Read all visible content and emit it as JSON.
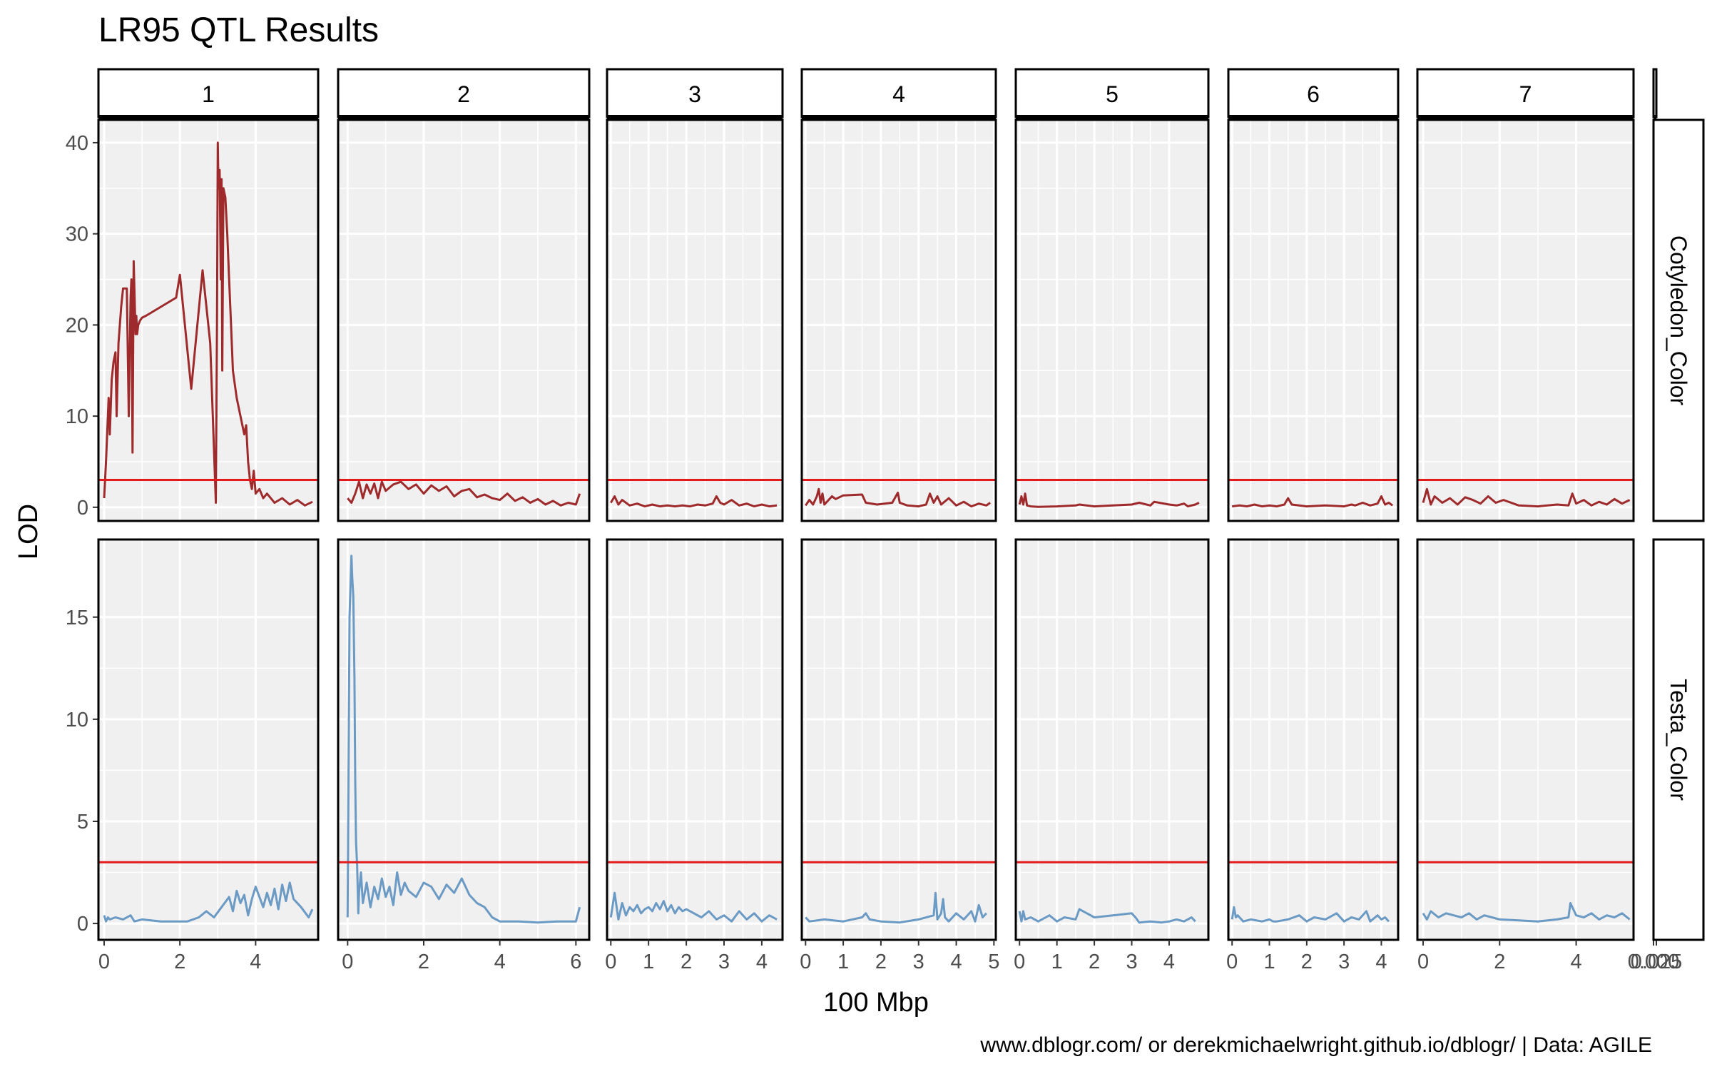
{
  "chart_data": {
    "type": "line",
    "title": "LR95 QTL Results",
    "xlabel": "100 Mbp",
    "ylabel": "LOD",
    "caption": "www.dblogr.com/ or derekmichaelwright.github.io/dblogr/ | Data: AGILE",
    "threshold": 3,
    "threshold_color": "#e31a1c",
    "panel_background": "#f0f0f0",
    "grid": true,
    "rows": [
      {
        "label": "Cotyledon_Color",
        "color": "#9e2a2b",
        "ylim": [
          -1.5,
          42.5
        ],
        "yticks": [
          0,
          10,
          20,
          30,
          40
        ]
      },
      {
        "label": "Testa_Color",
        "color": "#6b9ac4",
        "ylim": [
          -0.8,
          18.8
        ],
        "yticks": [
          0,
          5,
          10,
          15
        ]
      }
    ],
    "chromosomes": [
      {
        "label": "1",
        "xlim": [
          -0.15,
          5.65
        ],
        "xticks": [
          "0",
          "2",
          "4"
        ],
        "xtick_values": [
          0,
          2,
          4
        ]
      },
      {
        "label": "2",
        "xlim": [
          -0.25,
          6.35
        ],
        "xticks": [
          "0",
          "2",
          "4",
          "6"
        ],
        "xtick_values": [
          0,
          2,
          4,
          6
        ]
      },
      {
        "label": "3",
        "xlim": [
          -0.1,
          4.55
        ],
        "xticks": [
          "0",
          "1",
          "2",
          "3",
          "4"
        ],
        "xtick_values": [
          0,
          1,
          2,
          3,
          4
        ]
      },
      {
        "label": "4",
        "xlim": [
          -0.1,
          5.05
        ],
        "xticks": [
          "0",
          "1",
          "2",
          "3",
          "4",
          "5"
        ],
        "xtick_values": [
          0,
          1,
          2,
          3,
          4,
          5
        ]
      },
      {
        "label": "5",
        "xlim": [
          -0.1,
          5.05
        ],
        "xticks": [
          "0",
          "1",
          "2",
          "3",
          "4"
        ],
        "xtick_values": [
          0,
          1,
          2,
          3,
          4
        ]
      },
      {
        "label": "6",
        "xlim": [
          -0.1,
          4.45
        ],
        "xticks": [
          "0",
          "1",
          "2",
          "3",
          "4"
        ],
        "xtick_values": [
          0,
          1,
          2,
          3,
          4
        ]
      },
      {
        "label": "7",
        "xlim": [
          -0.15,
          5.5
        ],
        "xticks": [
          "0",
          "2",
          "4"
        ],
        "xtick_values": [
          0,
          2,
          4
        ]
      },
      {
        "label": "",
        "xlim": [
          0,
          0.025
        ],
        "xticks": [
          "0.000",
          "0.025"
        ],
        "xtick_values": [
          0,
          0.025
        ]
      }
    ],
    "series": [
      {
        "row": 0,
        "chr": 0,
        "x": [
          0.0,
          0.05,
          0.08,
          0.12,
          0.15,
          0.2,
          0.25,
          0.3,
          0.33,
          0.38,
          0.45,
          0.5,
          0.6,
          0.65,
          0.7,
          0.72,
          0.75,
          0.78,
          0.8,
          0.83,
          0.85,
          0.87,
          0.9,
          0.95,
          1.0,
          1.1,
          1.9,
          2.0,
          2.3,
          2.6,
          2.8,
          2.95,
          2.98,
          3.0,
          3.02,
          3.05,
          3.08,
          3.1,
          3.12,
          3.15,
          3.2,
          3.25,
          3.3,
          3.35,
          3.4,
          3.5,
          3.6,
          3.7,
          3.75,
          3.8,
          3.85,
          3.9,
          3.95,
          4.0,
          4.1,
          4.2,
          4.3,
          4.5,
          4.7,
          4.9,
          5.1,
          5.3,
          5.5
        ],
        "y": [
          1,
          5,
          8,
          12,
          8,
          14,
          16,
          17,
          10,
          18,
          22,
          24,
          24,
          10,
          23,
          25,
          6,
          27,
          24,
          19,
          21,
          19,
          20,
          20.5,
          20.8,
          21,
          23,
          25.5,
          13,
          26,
          18,
          0.5,
          20,
          40,
          35,
          37,
          25,
          36,
          15,
          35,
          34,
          30,
          25,
          20,
          15,
          12,
          10,
          8,
          9,
          5,
          3,
          2,
          4,
          1.5,
          2,
          1,
          1.5,
          0.5,
          1,
          0.3,
          0.8,
          0.2,
          0.6
        ]
      },
      {
        "row": 0,
        "chr": 1,
        "x": [
          0.0,
          0.1,
          0.2,
          0.3,
          0.4,
          0.5,
          0.6,
          0.7,
          0.8,
          0.9,
          1.0,
          1.2,
          1.4,
          1.6,
          1.8,
          2.0,
          2.2,
          2.4,
          2.6,
          2.8,
          3.0,
          3.2,
          3.4,
          3.6,
          3.8,
          4.0,
          4.2,
          4.4,
          4.6,
          4.8,
          5.0,
          5.2,
          5.4,
          5.6,
          5.8,
          6.0,
          6.1
        ],
        "y": [
          1,
          0.5,
          1.5,
          2.8,
          1,
          2.5,
          1.5,
          2.6,
          1,
          2.8,
          1.8,
          2.5,
          2.8,
          2,
          2.5,
          1.5,
          2.4,
          1.8,
          2.3,
          1.2,
          1.8,
          2,
          1.1,
          1.4,
          1,
          0.8,
          1.5,
          0.7,
          1.1,
          0.5,
          0.9,
          0.3,
          0.7,
          0.2,
          0.5,
          0.3,
          1.5
        ]
      },
      {
        "row": 0,
        "chr": 2,
        "x": [
          0.0,
          0.1,
          0.2,
          0.3,
          0.5,
          0.7,
          0.9,
          1.1,
          1.3,
          1.5,
          1.7,
          1.9,
          2.1,
          2.3,
          2.5,
          2.7,
          2.8,
          2.9,
          3.0,
          3.2,
          3.4,
          3.6,
          3.8,
          4.0,
          4.2,
          4.4
        ],
        "y": [
          0.5,
          1.2,
          0.3,
          0.8,
          0.2,
          0.4,
          0.1,
          0.3,
          0.1,
          0.2,
          0.1,
          0.2,
          0.1,
          0.3,
          0.2,
          0.4,
          1.2,
          0.5,
          0.3,
          0.8,
          0.2,
          0.4,
          0.1,
          0.3,
          0.1,
          0.2
        ]
      },
      {
        "row": 0,
        "chr": 3,
        "x": [
          0.0,
          0.1,
          0.2,
          0.3,
          0.35,
          0.4,
          0.45,
          0.5,
          0.7,
          0.8,
          1.0,
          1.5,
          1.6,
          1.9,
          2.3,
          2.45,
          2.5,
          2.7,
          3.0,
          3.2,
          3.3,
          3.4,
          3.5,
          3.6,
          3.8,
          4.0,
          4.2,
          4.4,
          4.6,
          4.8,
          4.9
        ],
        "y": [
          0.2,
          0.8,
          0.3,
          1.2,
          2,
          0.5,
          1.5,
          0.3,
          1.2,
          0.9,
          1.3,
          1.4,
          0.5,
          0.3,
          0.5,
          1.6,
          0.5,
          0.2,
          0.1,
          0.3,
          1.5,
          0.5,
          1.2,
          0.3,
          1,
          0.2,
          0.6,
          0.1,
          0.4,
          0.2,
          0.5
        ]
      },
      {
        "row": 0,
        "chr": 4,
        "x": [
          0.0,
          0.05,
          0.1,
          0.15,
          0.2,
          0.3,
          0.5,
          1.0,
          1.5,
          1.6,
          2.0,
          2.5,
          3.0,
          3.2,
          3.5,
          3.6,
          4.0,
          4.2,
          4.4,
          4.5,
          4.7,
          4.8
        ],
        "y": [
          0.3,
          1.2,
          0.3,
          1.5,
          0.2,
          0.1,
          0.05,
          0.1,
          0.2,
          0.3,
          0.1,
          0.2,
          0.3,
          0.5,
          0.2,
          0.6,
          0.3,
          0.2,
          0.4,
          0.1,
          0.3,
          0.5
        ]
      },
      {
        "row": 0,
        "chr": 5,
        "x": [
          0.0,
          0.2,
          0.4,
          0.6,
          0.8,
          1.0,
          1.2,
          1.4,
          1.5,
          1.6,
          2.0,
          2.5,
          3.0,
          3.2,
          3.3,
          3.5,
          3.7,
          3.9,
          4.0,
          4.1,
          4.2,
          4.3
        ],
        "y": [
          0.1,
          0.2,
          0.1,
          0.3,
          0.1,
          0.2,
          0.1,
          0.3,
          1,
          0.3,
          0.1,
          0.2,
          0.1,
          0.3,
          0.2,
          0.5,
          0.2,
          0.4,
          1.2,
          0.3,
          0.5,
          0.2
        ]
      },
      {
        "row": 0,
        "chr": 6,
        "x": [
          0.0,
          0.1,
          0.2,
          0.3,
          0.5,
          0.7,
          0.9,
          1.1,
          1.3,
          1.5,
          1.7,
          1.9,
          2.1,
          2.5,
          3.0,
          3.5,
          3.8,
          3.9,
          4.0,
          4.2,
          4.4,
          4.6,
          4.8,
          5.0,
          5.2,
          5.4
        ],
        "y": [
          0.5,
          2,
          0.3,
          1.2,
          0.5,
          1,
          0.3,
          1.1,
          0.8,
          0.4,
          1.2,
          0.5,
          0.8,
          0.2,
          0.1,
          0.3,
          0.2,
          1.5,
          0.4,
          0.8,
          0.2,
          0.6,
          0.3,
          0.9,
          0.4,
          0.8
        ]
      },
      {
        "row": 1,
        "chr": 0,
        "x": [
          0.0,
          0.05,
          0.1,
          0.15,
          0.3,
          0.5,
          0.7,
          0.8,
          1.0,
          1.5,
          2.2,
          2.5,
          2.7,
          2.9,
          3.1,
          3.3,
          3.4,
          3.5,
          3.6,
          3.7,
          3.8,
          3.9,
          4.0,
          4.2,
          4.3,
          4.4,
          4.5,
          4.6,
          4.7,
          4.8,
          4.9,
          5.0,
          5.2,
          5.4,
          5.5
        ],
        "y": [
          0.4,
          0.1,
          0.3,
          0.2,
          0.3,
          0.2,
          0.4,
          0.1,
          0.2,
          0.1,
          0.1,
          0.3,
          0.6,
          0.3,
          0.8,
          1.3,
          0.6,
          1.6,
          1,
          1.4,
          0.4,
          1.2,
          1.8,
          0.8,
          1.5,
          0.9,
          1.7,
          0.7,
          1.9,
          1.1,
          2,
          1.2,
          0.8,
          0.3,
          0.7
        ]
      },
      {
        "row": 1,
        "chr": 1,
        "x": [
          0.0,
          0.05,
          0.1,
          0.12,
          0.15,
          0.18,
          0.2,
          0.22,
          0.25,
          0.28,
          0.3,
          0.35,
          0.4,
          0.5,
          0.6,
          0.7,
          0.8,
          0.9,
          1.0,
          1.1,
          1.2,
          1.3,
          1.4,
          1.5,
          1.6,
          1.8,
          2.0,
          2.2,
          2.4,
          2.6,
          2.8,
          3.0,
          3.2,
          3.4,
          3.6,
          3.8,
          4.0,
          4.5,
          5.0,
          5.5,
          6.0,
          6.1
        ],
        "y": [
          0.3,
          15,
          18,
          17,
          16,
          12,
          7,
          4,
          2.8,
          0.5,
          1.5,
          2.5,
          1,
          2,
          0.8,
          1.8,
          1.2,
          2.2,
          1.3,
          1.8,
          0.9,
          2.5,
          1.4,
          2,
          1.6,
          1.3,
          2,
          1.8,
          1.2,
          1.9,
          1.5,
          2.2,
          1.4,
          1,
          0.8,
          0.3,
          0.1,
          0.1,
          0.05,
          0.1,
          0.1,
          0.8
        ]
      },
      {
        "row": 1,
        "chr": 2,
        "x": [
          0.0,
          0.1,
          0.2,
          0.3,
          0.4,
          0.5,
          0.6,
          0.7,
          0.8,
          0.9,
          1.0,
          1.1,
          1.2,
          1.3,
          1.4,
          1.5,
          1.6,
          1.7,
          1.8,
          1.9,
          2.0,
          2.2,
          2.4,
          2.6,
          2.8,
          3.0,
          3.2,
          3.4,
          3.6,
          3.8,
          4.0,
          4.2,
          4.4
        ],
        "y": [
          0.3,
          1.5,
          0.2,
          1,
          0.4,
          0.8,
          0.6,
          0.9,
          0.5,
          0.7,
          0.8,
          0.6,
          1,
          0.7,
          1.1,
          0.6,
          0.9,
          0.5,
          0.8,
          0.6,
          0.7,
          0.5,
          0.3,
          0.6,
          0.2,
          0.4,
          0.1,
          0.6,
          0.2,
          0.5,
          0.1,
          0.4,
          0.2
        ]
      },
      {
        "row": 1,
        "chr": 3,
        "x": [
          0.0,
          0.1,
          0.5,
          1.0,
          1.5,
          1.6,
          1.7,
          2.0,
          2.5,
          3.0,
          3.4,
          3.45,
          3.5,
          3.6,
          3.65,
          3.7,
          3.8,
          4.0,
          4.2,
          4.4,
          4.5,
          4.6,
          4.7,
          4.8
        ],
        "y": [
          0.3,
          0.1,
          0.2,
          0.1,
          0.3,
          0.5,
          0.2,
          0.1,
          0.05,
          0.2,
          0.4,
          1.5,
          0.2,
          0.5,
          1.2,
          0.3,
          0.1,
          0.5,
          0.2,
          0.6,
          0.1,
          0.9,
          0.3,
          0.5
        ]
      },
      {
        "row": 1,
        "chr": 4,
        "x": [
          0.0,
          0.05,
          0.1,
          0.15,
          0.3,
          0.5,
          0.8,
          1.0,
          1.2,
          1.5,
          1.6,
          2.0,
          2.5,
          3.0,
          3.1,
          3.2,
          3.5,
          3.8,
          4.0,
          4.2,
          4.4,
          4.6,
          4.7
        ],
        "y": [
          0.6,
          0.1,
          0.6,
          0.2,
          0.3,
          0.1,
          0.4,
          0.1,
          0.3,
          0.2,
          0.7,
          0.3,
          0.4,
          0.5,
          0.3,
          0.05,
          0.1,
          0.05,
          0.1,
          0.2,
          0.1,
          0.3,
          0.1
        ]
      },
      {
        "row": 1,
        "chr": 5,
        "x": [
          0.0,
          0.05,
          0.1,
          0.15,
          0.3,
          0.5,
          0.8,
          1.0,
          1.1,
          1.2,
          1.5,
          1.8,
          2.0,
          2.2,
          2.5,
          2.8,
          3.0,
          3.2,
          3.4,
          3.6,
          3.7,
          3.9,
          4.0,
          4.1,
          4.2
        ],
        "y": [
          0.2,
          0.8,
          0.3,
          0.4,
          0.1,
          0.2,
          0.1,
          0.2,
          0.1,
          0.1,
          0.2,
          0.4,
          0.1,
          0.3,
          0.2,
          0.5,
          0.1,
          0.3,
          0.2,
          0.6,
          0.1,
          0.4,
          0.2,
          0.3,
          0.1
        ]
      },
      {
        "row": 1,
        "chr": 6,
        "x": [
          0.0,
          0.1,
          0.2,
          0.4,
          0.6,
          0.8,
          1.0,
          1.2,
          1.4,
          1.6,
          1.8,
          2.0,
          2.5,
          3.0,
          3.5,
          3.8,
          3.85,
          4.0,
          4.2,
          4.4,
          4.6,
          4.8,
          5.0,
          5.2,
          5.4
        ],
        "y": [
          0.5,
          0.2,
          0.6,
          0.3,
          0.5,
          0.4,
          0.3,
          0.5,
          0.2,
          0.4,
          0.3,
          0.2,
          0.15,
          0.1,
          0.2,
          0.3,
          1,
          0.4,
          0.3,
          0.5,
          0.2,
          0.4,
          0.3,
          0.5,
          0.2
        ]
      }
    ]
  }
}
